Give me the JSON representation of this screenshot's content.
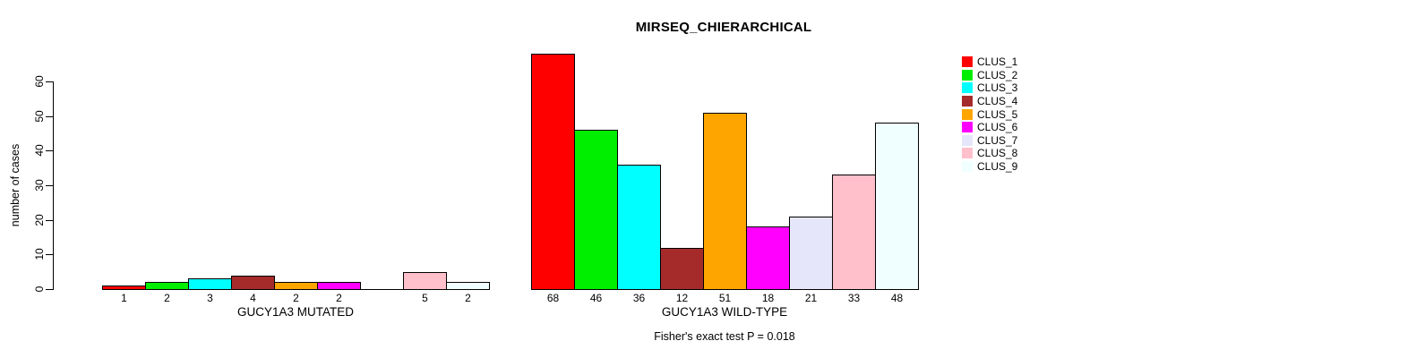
{
  "chart_data": {
    "type": "bar",
    "title": "MIRSEQ_CHIERARCHICAL",
    "ylabel": "number of cases",
    "ylim": [
      0,
      60
    ],
    "yticks": [
      0,
      10,
      20,
      30,
      40,
      50,
      60
    ],
    "grid": false,
    "bar_border_color": "#000000",
    "legend_position": "top-right",
    "legend": [
      {
        "label": "CLUS_1",
        "color": "#ff0000"
      },
      {
        "label": "CLUS_2",
        "color": "#00ee00"
      },
      {
        "label": "CLUS_3",
        "color": "#00ffff"
      },
      {
        "label": "CLUS_4",
        "color": "#a52a2a"
      },
      {
        "label": "CLUS_5",
        "color": "#ffa500"
      },
      {
        "label": "CLUS_6",
        "color": "#ff00ff"
      },
      {
        "label": "CLUS_7",
        "color": "#e6e6fa"
      },
      {
        "label": "CLUS_8",
        "color": "#ffc0cb"
      },
      {
        "label": "CLUS_9",
        "color": "#f0ffff"
      }
    ],
    "groups": [
      {
        "xlabel": "GUCY1A3 MUTATED",
        "values": [
          1,
          2,
          3,
          4,
          2,
          2,
          0,
          5,
          2
        ],
        "bar_labels": [
          "1",
          "2",
          "3",
          "4",
          "2",
          "2",
          "",
          "5",
          "2"
        ]
      },
      {
        "xlabel": "GUCY1A3 WILD-TYPE",
        "values": [
          68,
          46,
          36,
          12,
          51,
          18,
          21,
          33,
          48
        ],
        "bar_labels": [
          "68",
          "46",
          "36",
          "12",
          "51",
          "18",
          "21",
          "33",
          "48"
        ]
      }
    ],
    "annotation": "Fisher's exact test P = 0.018"
  }
}
